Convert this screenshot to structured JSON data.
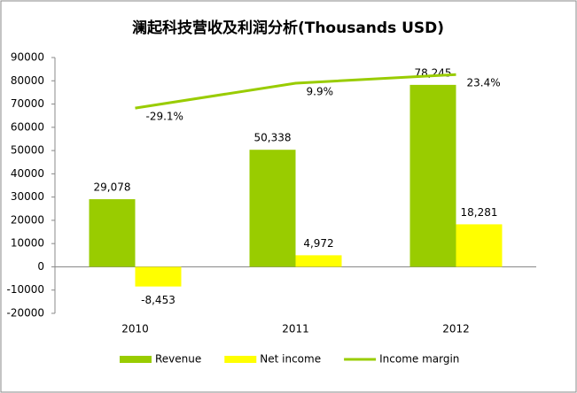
{
  "chart_data": {
    "type": "bar-line",
    "title": "澜起科技营收及利润分析(Thousands USD)",
    "categories": [
      "2010",
      "2011",
      "2012"
    ],
    "series": [
      {
        "name": "Revenue",
        "type": "bar",
        "color": "#99cc00",
        "values": [
          29078,
          50338,
          78245
        ],
        "value_labels": [
          "29,078",
          "50,338",
          "78,245"
        ]
      },
      {
        "name": "Net income",
        "type": "bar",
        "color": "#ffff00",
        "values": [
          -8453,
          4972,
          18281
        ],
        "value_labels": [
          "-8,453",
          "4,972",
          "18,281"
        ]
      },
      {
        "name": "Income margin",
        "type": "line",
        "axis": "y2",
        "color": "#99cc00",
        "values": [
          -29.1,
          9.9,
          23.4
        ],
        "value_labels": [
          "-29.1%",
          "9.9%",
          "23.4%"
        ]
      }
    ],
    "ylim": [
      -20000,
      90000
    ],
    "yticks": [
      -20000,
      -10000,
      0,
      10000,
      20000,
      30000,
      40000,
      50000,
      60000,
      70000,
      80000,
      90000
    ],
    "y2lim": [
      -350,
      50
    ],
    "legend": "bottom"
  }
}
